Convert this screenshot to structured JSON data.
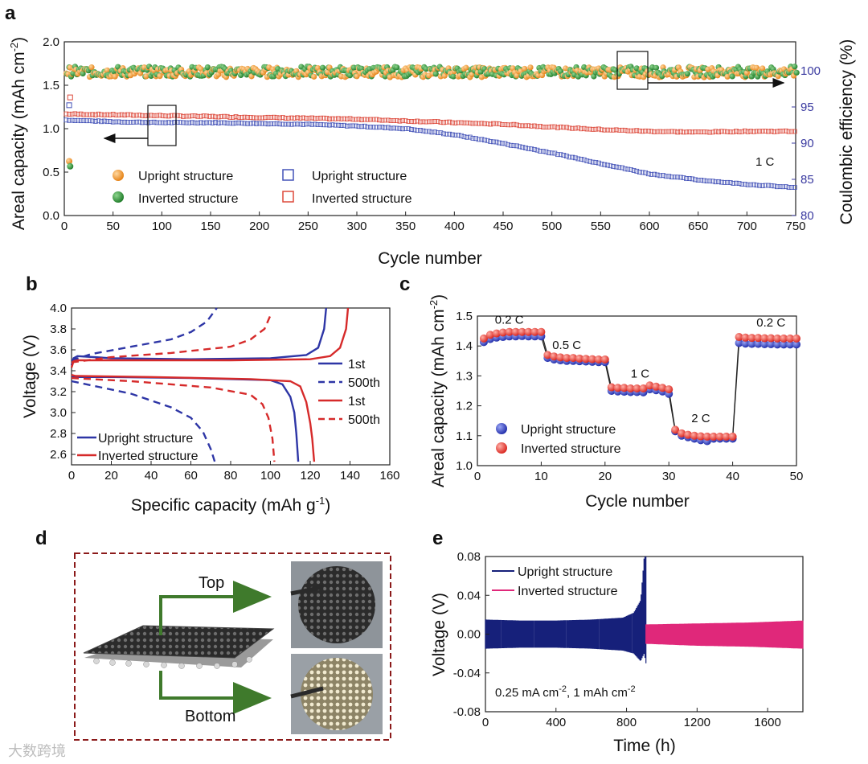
{
  "panels": {
    "a": {
      "letter": "a"
    },
    "b": {
      "letter": "b"
    },
    "c": {
      "letter": "c"
    },
    "d": {
      "letter": "d"
    },
    "e": {
      "letter": "e"
    }
  },
  "colors": {
    "upright_line": "#2e36a6",
    "inverted_line": "#d62a2a",
    "orange": "#f29a2e",
    "green": "#2f8f3a",
    "blue_sq": "#4453b8",
    "red_sq": "#dd4a3c",
    "navy": "#16207a",
    "magenta": "#e0287a",
    "frame": "#8b1a1a",
    "arrow_green": "#3f7a2c"
  },
  "panel_d": {
    "top_label": "Top",
    "bottom_label": "Bottom"
  },
  "watermark": "大数跨境",
  "chart_data": [
    {
      "id": "a",
      "type": "scatter",
      "title": "",
      "xlabel": "Cycle number",
      "ylabel": "Areal capacity (mAh cm",
      "ylabel_sup": "-2",
      "ylabel_end": ")",
      "y2label": "Coulombic efficiency (%)",
      "xlim": [
        0,
        750
      ],
      "ylim": [
        0,
        2.0
      ],
      "y2lim": [
        80,
        104
      ],
      "xticks": [
        0,
        50,
        100,
        150,
        200,
        250,
        300,
        350,
        400,
        450,
        500,
        550,
        600,
        650,
        700,
        750
      ],
      "yticks": [
        0.0,
        0.5,
        1.0,
        1.5,
        2.0
      ],
      "ytick_labels": [
        "0.0",
        "0.5",
        "1.0",
        "1.5",
        "2.0"
      ],
      "y2ticks": [
        80,
        85,
        90,
        95,
        100
      ],
      "annotation": "1 C",
      "legend_ce": [
        {
          "label": "Upright structure"
        },
        {
          "label": "Inverted structure"
        }
      ],
      "legend_cap": [
        {
          "label": "Upright structure"
        },
        {
          "label": "Inverted structure"
        }
      ],
      "series": [
        {
          "name": "Upright structure",
          "kind": "capacity",
          "axis": "left",
          "x": [
            1,
            50,
            100,
            150,
            200,
            250,
            300,
            350,
            400,
            450,
            500,
            550,
            600,
            650,
            700,
            750
          ],
          "values": [
            1.1,
            1.08,
            1.07,
            1.07,
            1.06,
            1.05,
            1.03,
            1.0,
            0.93,
            0.83,
            0.72,
            0.6,
            0.48,
            0.41,
            0.36,
            0.32
          ]
        },
        {
          "name": "Inverted structure",
          "kind": "capacity",
          "axis": "left",
          "x": [
            1,
            50,
            100,
            150,
            200,
            250,
            300,
            350,
            400,
            450,
            500,
            550,
            600,
            650,
            700,
            750
          ],
          "values": [
            1.17,
            1.16,
            1.15,
            1.14,
            1.13,
            1.12,
            1.11,
            1.09,
            1.07,
            1.05,
            1.02,
            0.99,
            0.97,
            0.96,
            0.97,
            0.97
          ]
        },
        {
          "name": "Upright structure",
          "kind": "coulombic_efficiency",
          "axis": "right",
          "x": [
            1,
            750
          ],
          "values": [
            99.8,
            99.8
          ]
        },
        {
          "name": "Inverted structure",
          "kind": "coulombic_efficiency",
          "axis": "right",
          "x": [
            1,
            750
          ],
          "values": [
            99.9,
            99.9
          ]
        }
      ],
      "initial_points": {
        "upright_ce_first": 87.5,
        "inverted_ce_first": 86.8,
        "upright_cap_first": 1.27,
        "inverted_cap_first": 1.36
      }
    },
    {
      "id": "b",
      "type": "line",
      "title": "",
      "xlabel": "Specific capacity (mAh g",
      "xlabel_sup": "-1",
      "xlabel_end": ")",
      "ylabel": "Voltage (V)",
      "xlim": [
        0,
        160
      ],
      "ylim": [
        2.5,
        4.0
      ],
      "xticks": [
        0,
        20,
        40,
        60,
        80,
        100,
        120,
        140,
        160
      ],
      "yticks": [
        2.6,
        2.8,
        3.0,
        3.2,
        3.4,
        3.6,
        3.8,
        4.0
      ],
      "ytick_labels": [
        "2.6",
        "2.8",
        "3.0",
        "3.2",
        "3.4",
        "3.6",
        "3.8",
        "4.0"
      ],
      "legend_right": [
        {
          "label": "1st",
          "style": "solid",
          "color": "upright"
        },
        {
          "label": "500th",
          "style": "dashed",
          "color": "upright"
        },
        {
          "label": "1st",
          "style": "solid",
          "color": "inverted"
        },
        {
          "label": "500th",
          "style": "dashed",
          "color": "inverted"
        }
      ],
      "legend_left": [
        {
          "label": "Upright structure"
        },
        {
          "label": "Inverted structure"
        }
      ],
      "series": [
        {
          "name": "Upright 1st charge",
          "color": "upright",
          "dash": false,
          "x": [
            0,
            1,
            3,
            20,
            60,
            100,
            118,
            124,
            127,
            128
          ],
          "values": [
            3.45,
            3.52,
            3.54,
            3.52,
            3.51,
            3.52,
            3.55,
            3.62,
            3.8,
            4.0
          ]
        },
        {
          "name": "Upright 1st discharge",
          "color": "upright",
          "dash": false,
          "x": [
            0,
            2,
            20,
            60,
            100,
            106,
            110,
            112,
            113,
            114
          ],
          "values": [
            3.34,
            3.34,
            3.34,
            3.33,
            3.31,
            3.27,
            3.15,
            3.0,
            2.8,
            2.53
          ]
        },
        {
          "name": "Upright 500th charge",
          "color": "upright",
          "dash": true,
          "x": [
            0,
            10,
            30,
            50,
            60,
            68,
            73
          ],
          "values": [
            3.5,
            3.56,
            3.63,
            3.7,
            3.77,
            3.87,
            4.0
          ]
        },
        {
          "name": "Upright 500th discharge",
          "color": "upright",
          "dash": true,
          "x": [
            0,
            10,
            30,
            50,
            60,
            66,
            70,
            72
          ],
          "values": [
            3.3,
            3.26,
            3.18,
            3.05,
            2.95,
            2.82,
            2.65,
            2.53
          ]
        },
        {
          "name": "Inverted 1st charge",
          "color": "inverted",
          "dash": false,
          "x": [
            0,
            1,
            3,
            30,
            80,
            120,
            130,
            135,
            138,
            139
          ],
          "values": [
            3.43,
            3.49,
            3.5,
            3.5,
            3.5,
            3.51,
            3.54,
            3.62,
            3.8,
            4.0
          ]
        },
        {
          "name": "Inverted 1st discharge",
          "color": "inverted",
          "dash": false,
          "x": [
            0,
            2,
            40,
            90,
            110,
            115,
            118,
            120,
            121,
            122
          ],
          "values": [
            3.36,
            3.35,
            3.34,
            3.32,
            3.3,
            3.25,
            3.1,
            2.9,
            2.75,
            2.53
          ]
        },
        {
          "name": "Inverted 500th charge",
          "color": "inverted",
          "dash": true,
          "x": [
            0,
            20,
            50,
            80,
            90,
            97,
            100
          ],
          "values": [
            3.48,
            3.53,
            3.57,
            3.63,
            3.7,
            3.8,
            3.93
          ]
        },
        {
          "name": "Inverted 500th discharge",
          "color": "inverted",
          "dash": true,
          "x": [
            0,
            30,
            70,
            90,
            96,
            99,
            101,
            102
          ],
          "values": [
            3.33,
            3.3,
            3.24,
            3.17,
            3.08,
            2.95,
            2.75,
            2.53
          ]
        }
      ]
    },
    {
      "id": "c",
      "type": "scatter",
      "title": "",
      "xlabel": "Cycle number",
      "ylabel": "Areal capacity (mAh cm",
      "ylabel_sup": "-2",
      "ylabel_end": ")",
      "xlim": [
        0,
        50
      ],
      "ylim": [
        1.0,
        1.5
      ],
      "xticks": [
        0,
        10,
        20,
        30,
        40,
        50
      ],
      "yticks": [
        1.0,
        1.1,
        1.2,
        1.3,
        1.4,
        1.5
      ],
      "ytick_labels": [
        "1.0",
        "1.1",
        "1.2",
        "1.3",
        "1.4",
        "1.5"
      ],
      "rate_labels": [
        {
          "label": "0.2 C",
          "x": 5,
          "y": 1.475
        },
        {
          "label": "0.5 C",
          "x": 14,
          "y": 1.39
        },
        {
          "label": "1 C",
          "x": 25.5,
          "y": 1.295
        },
        {
          "label": "2 C",
          "x": 35,
          "y": 1.145
        },
        {
          "label": "0.2 C",
          "x": 46,
          "y": 1.465
        }
      ],
      "legend": [
        {
          "label": "Upright structure"
        },
        {
          "label": "Inverted structure"
        }
      ],
      "series": [
        {
          "name": "Upright structure",
          "x": [
            1,
            2,
            3,
            4,
            5,
            6,
            7,
            8,
            9,
            10,
            11,
            12,
            13,
            14,
            15,
            16,
            17,
            18,
            19,
            20,
            21,
            22,
            23,
            24,
            25,
            26,
            27,
            28,
            29,
            30,
            31,
            32,
            33,
            34,
            35,
            36,
            37,
            38,
            39,
            40,
            41,
            42,
            43,
            44,
            45,
            46,
            47,
            48,
            49,
            50
          ],
          "values": [
            1.413,
            1.423,
            1.428,
            1.43,
            1.432,
            1.432,
            1.433,
            1.432,
            1.432,
            1.432,
            1.36,
            1.355,
            1.352,
            1.35,
            1.35,
            1.349,
            1.348,
            1.347,
            1.346,
            1.346,
            1.25,
            1.248,
            1.247,
            1.246,
            1.246,
            1.245,
            1.255,
            1.252,
            1.248,
            1.24,
            1.115,
            1.1,
            1.095,
            1.09,
            1.085,
            1.082,
            1.09,
            1.09,
            1.09,
            1.09,
            1.41,
            1.408,
            1.407,
            1.407,
            1.406,
            1.406,
            1.405,
            1.405,
            1.405,
            1.405
          ]
        },
        {
          "name": "Inverted structure",
          "x": [
            1,
            2,
            3,
            4,
            5,
            6,
            7,
            8,
            9,
            10,
            11,
            12,
            13,
            14,
            15,
            16,
            17,
            18,
            19,
            20,
            21,
            22,
            23,
            24,
            25,
            26,
            27,
            28,
            29,
            30,
            31,
            32,
            33,
            34,
            35,
            36,
            37,
            38,
            39,
            40,
            41,
            42,
            43,
            44,
            45,
            46,
            47,
            48,
            49,
            50
          ],
          "values": [
            1.425,
            1.437,
            1.442,
            1.445,
            1.447,
            1.447,
            1.447,
            1.447,
            1.447,
            1.447,
            1.37,
            1.365,
            1.362,
            1.36,
            1.36,
            1.358,
            1.357,
            1.356,
            1.355,
            1.355,
            1.262,
            1.26,
            1.26,
            1.258,
            1.258,
            1.258,
            1.268,
            1.264,
            1.26,
            1.255,
            1.12,
            1.108,
            1.103,
            1.1,
            1.098,
            1.097,
            1.097,
            1.097,
            1.097,
            1.097,
            1.43,
            1.428,
            1.427,
            1.427,
            1.426,
            1.426,
            1.425,
            1.425,
            1.425,
            1.425
          ]
        }
      ]
    },
    {
      "id": "e",
      "type": "line",
      "title": "",
      "xlabel": "Time (h)",
      "ylabel": "Voltage (V)",
      "xlim": [
        0,
        1800
      ],
      "ylim": [
        -0.08,
        0.08
      ],
      "xticks": [
        0,
        400,
        800,
        1200,
        1600
      ],
      "yticks": [
        -0.08,
        -0.04,
        0.0,
        0.04,
        0.08
      ],
      "ytick_labels": [
        "-0.08",
        "-0.04",
        "0.00",
        "0.04",
        "0.08"
      ],
      "annotation": "0.25 mA cm",
      "annotation_sup": "-2",
      "annotation_mid": ", 1 mAh cm",
      "annotation_sup2": "-2",
      "legend": [
        {
          "label": "Upright structure"
        },
        {
          "label": "Inverted structure"
        }
      ],
      "series": [
        {
          "name": "Upright structure",
          "x": [
            0,
            200,
            400,
            600,
            780,
            840,
            880,
            900,
            910
          ],
          "upper": [
            0.015,
            0.014,
            0.014,
            0.015,
            0.017,
            0.022,
            0.035,
            0.08,
            0.08
          ],
          "lower": [
            -0.015,
            -0.014,
            -0.014,
            -0.015,
            -0.017,
            -0.02,
            -0.028,
            -0.02,
            -0.03
          ]
        },
        {
          "name": "Inverted structure",
          "x": [
            910,
            1200,
            1500,
            1800
          ],
          "upper": [
            0.01,
            0.011,
            0.012,
            0.014
          ],
          "lower": [
            -0.01,
            -0.012,
            -0.013,
            -0.015
          ]
        }
      ]
    }
  ]
}
